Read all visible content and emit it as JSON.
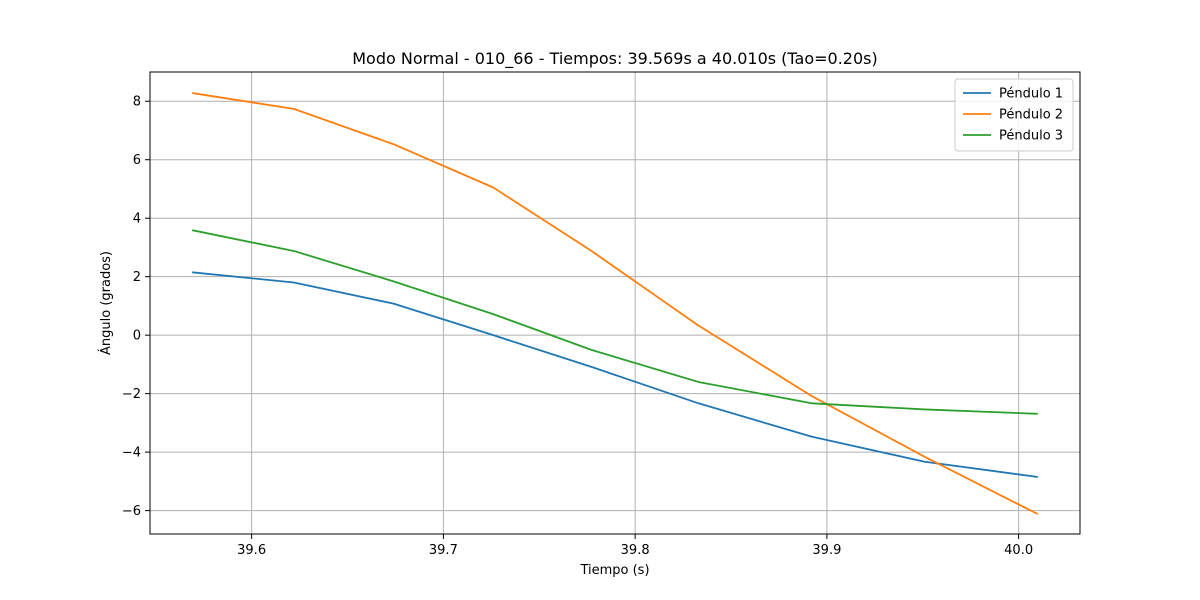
{
  "chart_data": {
    "type": "line",
    "title": "Modo Normal - 010_66 - Tiempos: 39.569s a 40.010s (Tao=0.20s)",
    "xlabel": "Tiempo (s)",
    "ylabel": "Ángulo (grados)",
    "xlim": [
      39.547,
      40.032
    ],
    "ylim": [
      -6.8,
      9.0
    ],
    "xticks": [
      39.6,
      39.7,
      39.8,
      39.9,
      40.0
    ],
    "xtick_labels": [
      "39.6",
      "39.7",
      "39.8",
      "39.9",
      "40.0"
    ],
    "yticks": [
      -6,
      -4,
      -2,
      0,
      2,
      4,
      6,
      8
    ],
    "ytick_labels": [
      "−6",
      "−4",
      "−2",
      "0",
      "2",
      "4",
      "6",
      "8"
    ],
    "grid": true,
    "legend_position": "top-right",
    "x": [
      39.569,
      39.622,
      39.674,
      39.726,
      39.777,
      39.833,
      39.892,
      39.951,
      40.01
    ],
    "series": [
      {
        "name": "Péndulo 1",
        "color": "#1f77b4",
        "values": [
          2.15,
          1.8,
          1.08,
          0.0,
          -1.08,
          -2.33,
          -3.47,
          -4.33,
          -4.85
        ]
      },
      {
        "name": "Péndulo 2",
        "color": "#ff7f0e",
        "values": [
          8.28,
          7.74,
          6.53,
          5.05,
          2.89,
          0.33,
          -2.08,
          -4.16,
          -6.12
        ]
      },
      {
        "name": "Péndulo 3",
        "color": "#2ca02c",
        "values": [
          3.59,
          2.88,
          1.84,
          0.72,
          -0.5,
          -1.6,
          -2.33,
          -2.54,
          -2.69
        ]
      }
    ]
  }
}
